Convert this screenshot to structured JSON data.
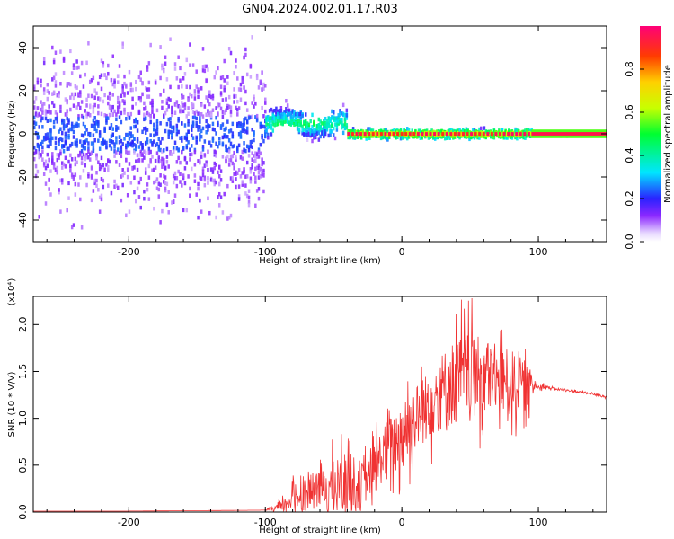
{
  "title": "GN04.2024.002.01.17.R03",
  "colors": {
    "snr_line": "#f03232",
    "axis": "#000000",
    "bg": "#ffffff"
  },
  "chart_data": [
    {
      "type": "heatmap",
      "name": "spectrogram",
      "xlabel": "Height of straight line (km)",
      "ylabel": "Frequency (Hz)",
      "xlim": [
        -270,
        150
      ],
      "ylim": [
        -50,
        50
      ],
      "x_ticks": [
        -200,
        -100,
        0,
        100
      ],
      "x_tick_labels": [
        "-200",
        "-100",
        "0",
        "100"
      ],
      "y_ticks": [
        -40,
        -20,
        0,
        20,
        40
      ],
      "y_tick_labels": [
        "-40",
        "-20",
        "0",
        "20",
        "40"
      ],
      "colorbar": {
        "label": "Normalized spectral amplitude",
        "range": [
          0,
          1
        ],
        "ticks": [
          0.0,
          0.2,
          0.4,
          0.6,
          0.8
        ],
        "tick_labels": [
          "0.0",
          "0.2",
          "0.4",
          "0.6",
          "0.8"
        ]
      },
      "regions": [
        {
          "x_range": [
            -270,
            -100
          ],
          "freq_spread": 50,
          "level": 0.15
        },
        {
          "x_range": [
            -100,
            -40
          ],
          "center_freq": 5,
          "freq_spread": 8,
          "level": 0.45
        },
        {
          "x_range": [
            -40,
            95
          ],
          "center_freq": 0,
          "freq_spread": 3,
          "level": 0.7
        },
        {
          "x_range": [
            95,
            150
          ],
          "center_freq": 0,
          "freq_spread": 1,
          "level": 0.95
        }
      ]
    },
    {
      "type": "line",
      "name": "snr",
      "xlabel": "Height of straight line (km)",
      "ylabel": "SNR (10 * V/V)",
      "multiplier": "(x10⁴)",
      "xlim": [
        -270,
        150
      ],
      "ylim": [
        0,
        2.3
      ],
      "x_ticks": [
        -200,
        -100,
        0,
        100
      ],
      "x_tick_labels": [
        "-200",
        "-100",
        "0",
        "100"
      ],
      "y_ticks": [
        0.0,
        0.5,
        1.0,
        1.5,
        2.0
      ],
      "y_tick_labels": [
        "0.0",
        "0.5",
        "1.0",
        "1.5",
        "2.0"
      ],
      "series": [
        {
          "x": [
            -270,
            -200,
            -100,
            -88,
            -80,
            -70,
            -60,
            -50,
            -40,
            -30,
            -25,
            -20,
            -15,
            -10,
            -5,
            0,
            10,
            20,
            30,
            40,
            50,
            60,
            70,
            80,
            90,
            100,
            110,
            120,
            130,
            140,
            150
          ],
          "y": [
            0.01,
            0.01,
            0.02,
            0.05,
            0.15,
            0.2,
            0.25,
            0.28,
            0.3,
            0.25,
            0.35,
            0.45,
            0.6,
            0.7,
            0.75,
            0.85,
            1.0,
            1.15,
            1.3,
            1.4,
            1.45,
            1.45,
            1.4,
            1.4,
            1.35,
            1.35,
            1.32,
            1.3,
            1.28,
            1.26,
            1.23
          ],
          "noise": [
            0,
            0,
            0,
            0.1,
            0.2,
            0.3,
            0.3,
            0.45,
            0.6,
            0.5,
            0.3,
            0.45,
            0.5,
            0.5,
            0.55,
            0.6,
            0.6,
            0.6,
            0.7,
            0.8,
            0.7,
            0.7,
            0.6,
            0.55,
            0.45,
            0.05,
            0.02,
            0.02,
            0.02,
            0.02,
            0.02
          ]
        }
      ]
    }
  ]
}
